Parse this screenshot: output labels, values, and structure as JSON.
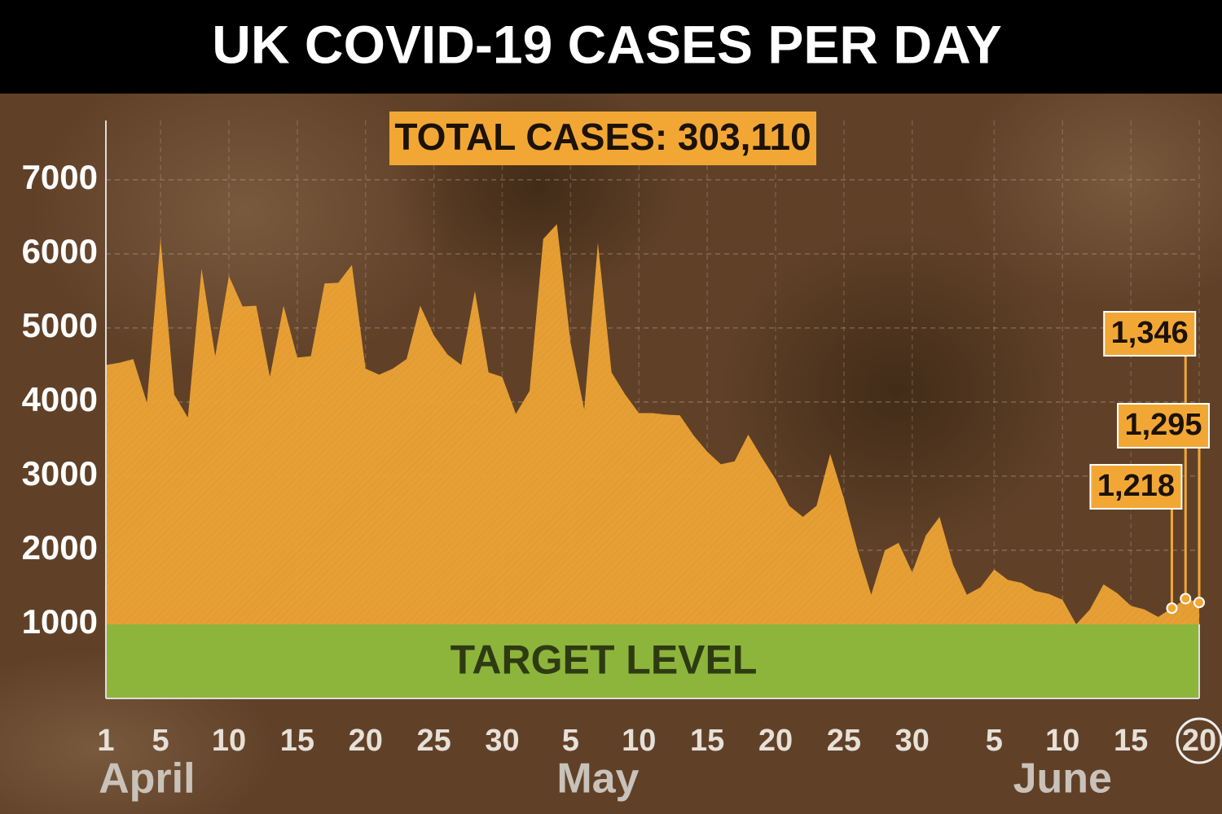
{
  "chart_data": {
    "type": "area",
    "title": "UK COVID-19 CASES PER DAY",
    "total_label": "TOTAL CASES:  303,110",
    "target": {
      "label": "TARGET LEVEL",
      "value": 1000,
      "color": "#8db53c"
    },
    "color": "#f2a735",
    "months": [
      "April",
      "May",
      "June"
    ],
    "categories": [
      "1",
      null,
      null,
      null,
      "5",
      null,
      null,
      null,
      null,
      "10",
      null,
      null,
      null,
      null,
      "15",
      null,
      null,
      null,
      null,
      "20",
      null,
      null,
      null,
      null,
      "25",
      null,
      null,
      null,
      null,
      "30",
      null,
      null,
      null,
      null,
      "5",
      null,
      null,
      null,
      null,
      "10",
      null,
      null,
      null,
      null,
      "15",
      null,
      null,
      null,
      null,
      "20",
      null,
      null,
      null,
      null,
      "25",
      null,
      null,
      null,
      null,
      "30",
      null,
      null,
      null,
      null,
      null,
      "5",
      null,
      null,
      null,
      null,
      "10",
      null,
      null,
      null,
      null,
      "15",
      null,
      null,
      null,
      null,
      "20"
    ],
    "values": [
      4500,
      4530,
      4580,
      3990,
      6200,
      4100,
      3790,
      5800,
      4620,
      5700,
      5290,
      5300,
      4340,
      5300,
      4600,
      4620,
      5600,
      5610,
      5850,
      4450,
      4370,
      4450,
      4580,
      5300,
      4900,
      4640,
      4500,
      5500,
      4400,
      4340,
      3840,
      4150,
      6200,
      6400,
      4800,
      3900,
      6150,
      4400,
      4100,
      3850,
      3850,
      3830,
      3820,
      3550,
      3330,
      3160,
      3200,
      3560,
      3250,
      2960,
      2600,
      2450,
      2600,
      3300,
      2700,
      2000,
      1400,
      2000,
      2100,
      1700,
      2200,
      2450,
      1800,
      1400,
      1500,
      1740,
      1600,
      1560,
      1450,
      1410,
      1330,
      1000,
      1200,
      1540,
      1420,
      1250,
      1200,
      1100,
      1218,
      1346,
      1295
    ],
    "value_labels": [
      null,
      null,
      null,
      null,
      null,
      null,
      null,
      null,
      null,
      null,
      null,
      null,
      null,
      null,
      null,
      null,
      null,
      null,
      null,
      null,
      null,
      null,
      null,
      null,
      null,
      null,
      null,
      null,
      null,
      null,
      null,
      null,
      null,
      null,
      null,
      null,
      null,
      null,
      null,
      null,
      null,
      null,
      null,
      null,
      null,
      null,
      null,
      null,
      null,
      null,
      null,
      null,
      null,
      null,
      null,
      null,
      null,
      null,
      null,
      null,
      null,
      null,
      null,
      null,
      null,
      null,
      null,
      null,
      null,
      null,
      null,
      null,
      null,
      null,
      null,
      null,
      null,
      null,
      "1,218",
      "1,346",
      "1,295"
    ],
    "ylim": [
      0,
      7800
    ],
    "yticks": [
      1000,
      2000,
      3000,
      4000,
      5000,
      6000,
      7000
    ],
    "grid": true
  }
}
